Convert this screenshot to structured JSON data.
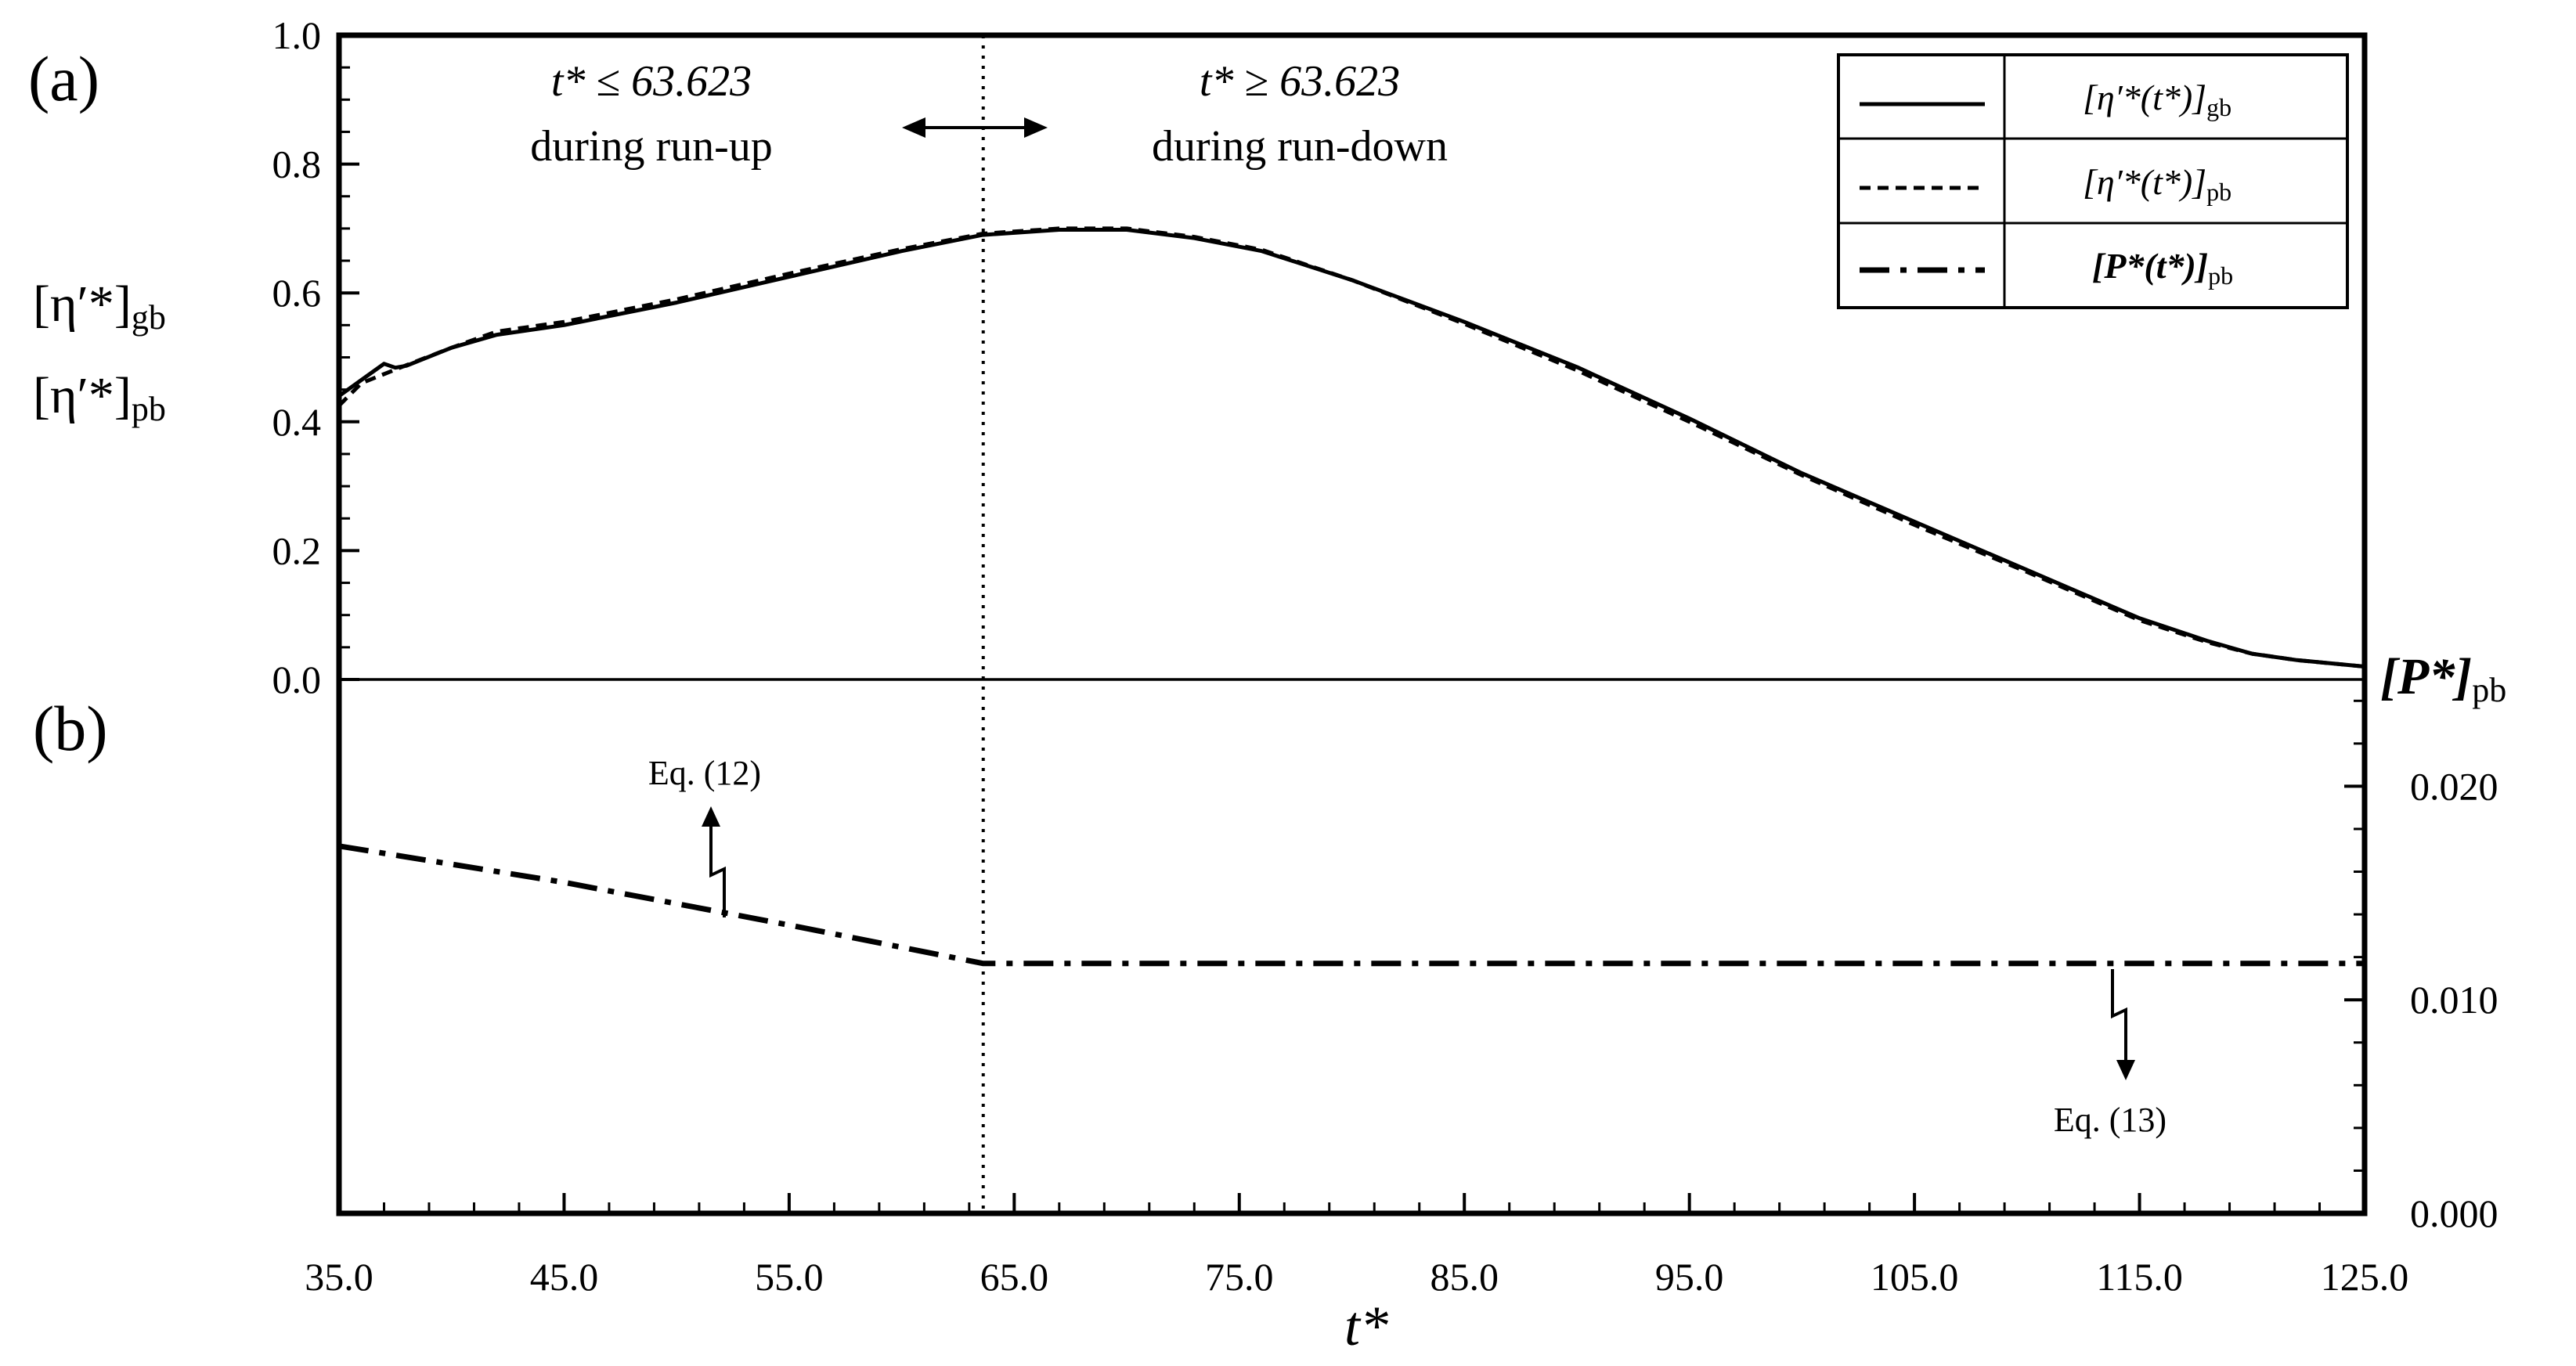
{
  "chart_data": {
    "type": "line",
    "panel_labels": {
      "a": "(a)",
      "b": "(b)"
    },
    "xlabel": "t*",
    "x_ticks": [
      "35.0",
      "45.0",
      "55.0",
      "65.0",
      "75.0",
      "85.0",
      "95.0",
      "105.0",
      "115.0",
      "125.0"
    ],
    "xlim": [
      35,
      125
    ],
    "left_axis": {
      "label_line1": "[η′*]",
      "label_line1_sub": "gb",
      "label_line2": "[η′*]",
      "label_line2_sub": "pb",
      "ticks": [
        "0.0",
        "0.2",
        "0.4",
        "0.6",
        "0.8",
        "1.0"
      ],
      "ylim": [
        0,
        1
      ]
    },
    "right_axis": {
      "label": "[P*]",
      "label_sub": "pb",
      "ticks": [
        "0.000",
        "0.010",
        "0.020"
      ],
      "ylim": [
        0,
        0.025
      ]
    },
    "switch_time": 63.623,
    "annotations": {
      "runup_line1": "t* ≤ 63.623",
      "runup_line2": "during run-up",
      "rundown_line1": "t* ≥ 63.623",
      "rundown_line2": "during run-down",
      "eq12": "Eq. (12)",
      "eq13": "Eq. (13)"
    },
    "legend": [
      {
        "text": "[η′*(t*)]",
        "sub": "gb",
        "style": "solid"
      },
      {
        "text": "[η′*(t*)]",
        "sub": "pb",
        "style": "dashed"
      },
      {
        "text": "[P*(t*)]",
        "sub": "pb",
        "style": "dashdot"
      }
    ],
    "series": [
      {
        "name": "[η′*(t*)]gb",
        "axis": "left",
        "style": "solid",
        "x": [
          35,
          36,
          37,
          37.5,
          38,
          40,
          42,
          45,
          50,
          55,
          60,
          63.6,
          67,
          70,
          73,
          76,
          80,
          85,
          90,
          95,
          100,
          105,
          110,
          115,
          118,
          120,
          122,
          125
        ],
        "y": [
          0.44,
          0.465,
          0.49,
          0.484,
          0.487,
          0.515,
          0.535,
          0.55,
          0.585,
          0.625,
          0.665,
          0.69,
          0.698,
          0.698,
          0.685,
          0.665,
          0.62,
          0.555,
          0.485,
          0.405,
          0.32,
          0.245,
          0.17,
          0.095,
          0.06,
          0.04,
          0.03,
          0.02
        ]
      },
      {
        "name": "[η′*(t*)]pb",
        "axis": "left",
        "style": "dashed",
        "x": [
          35,
          36,
          38,
          40,
          42,
          45,
          50,
          55,
          60,
          63.6,
          67,
          70,
          73,
          76,
          80,
          85,
          90,
          95,
          100,
          105,
          110,
          115,
          118,
          120,
          122,
          125
        ],
        "y": [
          0.425,
          0.46,
          0.488,
          0.515,
          0.54,
          0.555,
          0.59,
          0.63,
          0.668,
          0.692,
          0.7,
          0.7,
          0.687,
          0.667,
          0.62,
          0.552,
          0.48,
          0.4,
          0.317,
          0.24,
          0.167,
          0.092,
          0.058,
          0.04,
          0.03,
          0.02
        ]
      },
      {
        "name": "[P*(t*)]pb",
        "axis": "right",
        "style": "dashdot",
        "x": [
          35,
          45,
          55,
          63.623,
          125
        ],
        "y": [
          0.0172,
          0.0155,
          0.0135,
          0.0117,
          0.0117
        ]
      }
    ]
  }
}
